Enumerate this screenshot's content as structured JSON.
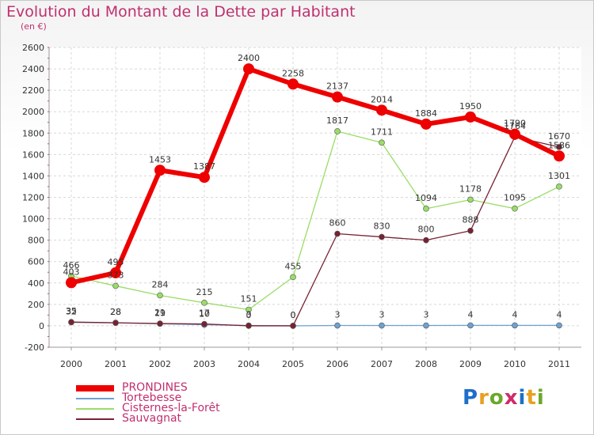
{
  "header": {
    "title": "Evolution du Montant de la Dette par Habitant",
    "subtitle": "(en €)"
  },
  "logo": {
    "text": "Proxiti",
    "letter_colors": [
      "#1e6fc8",
      "#e8a020",
      "#6aa82a",
      "#d02a6a",
      "#1e6fc8",
      "#e8a020",
      "#6aa82a"
    ]
  },
  "chart_data": {
    "type": "line",
    "title": "Evolution du Montant de la Dette par Habitant",
    "ylabel": "(en €)",
    "ylim": [
      -200,
      2600
    ],
    "yticks": [
      -200,
      0,
      200,
      400,
      600,
      800,
      1000,
      1200,
      1400,
      1600,
      1800,
      2000,
      2200,
      2400,
      2600
    ],
    "x": [
      "2000",
      "2001",
      "2002",
      "2003",
      "2004",
      "2005",
      "2006",
      "2007",
      "2008",
      "2009",
      "2010",
      "2011"
    ],
    "grid": true,
    "legend_position": "bottom-left",
    "series": [
      {
        "name": "PRONDINES",
        "color": "#ee0000",
        "values": [
          403,
          495,
          1453,
          1387,
          2400,
          2258,
          2137,
          2014,
          1884,
          1950,
          1790,
          1586
        ],
        "labels": [
          "403",
          "495",
          "1453",
          "1387",
          "2400",
          "2258",
          "2137",
          "2014",
          "1884",
          "1950",
          "1790",
          "1586"
        ]
      },
      {
        "name": "Tortebesse",
        "color": "#6fa0d0",
        "values": [
          32,
          28,
          19,
          10,
          3,
          0,
          3,
          3,
          3,
          4,
          4,
          4
        ],
        "labels": [
          "32",
          "28",
          "19",
          "10",
          "3",
          "0",
          "3",
          "3",
          "3",
          "4",
          "4",
          "4"
        ]
      },
      {
        "name": "Cisternes-la-Forêt",
        "color": "#99dd66",
        "values": [
          466,
          373,
          284,
          215,
          151,
          455,
          1817,
          1711,
          1094,
          1178,
          1095,
          1301
        ],
        "labels": [
          "466",
          "373",
          "284",
          "215",
          "151",
          "455",
          "1817",
          "1711",
          "1094",
          "1178",
          "1095",
          "1301"
        ]
      },
      {
        "name": "Sauvagnat",
        "color": "#772233",
        "values": [
          35,
          28,
          21,
          17,
          0,
          0,
          860,
          830,
          800,
          888,
          1764,
          1670
        ],
        "labels": [
          "35",
          "28",
          "21",
          "17",
          "0",
          "0",
          "860",
          "830",
          "800",
          "888",
          "1764",
          "1670"
        ]
      }
    ]
  }
}
